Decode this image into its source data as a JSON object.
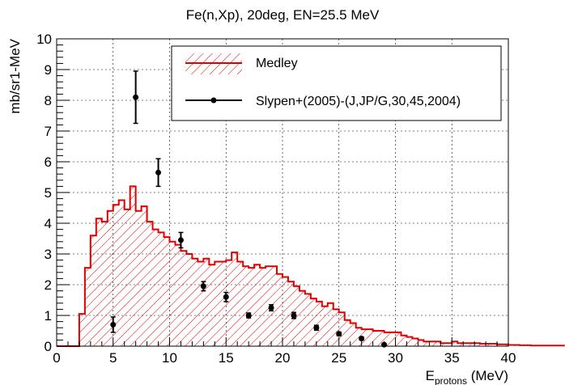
{
  "chart_data": {
    "type": "histogram-with-points",
    "title": "Fe(n,Xp), 20deg, EN=25.5 MeV",
    "xlabel": {
      "main": "E",
      "sub": "protons",
      "suffix": " (MeV)"
    },
    "ylabel": "mb/sr1-MeV",
    "xlim": [
      0,
      40
    ],
    "ylim": [
      0,
      10
    ],
    "x_ticks": [
      "0",
      "5",
      "10",
      "15",
      "20",
      "25",
      "30",
      "35",
      "40"
    ],
    "y_ticks": [
      "0",
      "1",
      "2",
      "3",
      "4",
      "5",
      "6",
      "7",
      "8",
      "9",
      "10"
    ],
    "grid": true,
    "legend_position": "top-right",
    "colors": {
      "histogram": "#e00000",
      "hatch": "#e00000",
      "points": "#000000"
    },
    "histogram": {
      "name": "Medley",
      "bin_width": 0.5,
      "bin_start": 0,
      "values": [
        0,
        0,
        0,
        0,
        1.05,
        2.55,
        3.6,
        4.15,
        4.05,
        4.4,
        4.6,
        4.75,
        4.45,
        5.2,
        4.4,
        4.55,
        4.05,
        3.8,
        3.7,
        3.55,
        3.4,
        3.3,
        3.1,
        3.0,
        2.85,
        2.75,
        2.85,
        2.65,
        2.75,
        2.75,
        2.8,
        3.05,
        2.75,
        2.6,
        2.55,
        2.65,
        2.55,
        2.6,
        2.6,
        2.35,
        2.25,
        2.1,
        1.95,
        1.8,
        1.7,
        1.55,
        1.45,
        1.3,
        1.4,
        1.2,
        1.1,
        0.85,
        0.75,
        0.6,
        0.55,
        0.55,
        0.5,
        0.5,
        0.45,
        0.45,
        0.45,
        0.35,
        0.3,
        0.25,
        0.2,
        0.15,
        0.15,
        0.15,
        0.1,
        0.1,
        0.15,
        0.1,
        0.1,
        0.1,
        0.1,
        0.08,
        0.08,
        0.08,
        0.06,
        0.06,
        0.04,
        0.04,
        0.03,
        0.03,
        0.02,
        0.02,
        0.02,
        0.02,
        0.02,
        0.02
      ]
    },
    "points": {
      "name": "Slypen+(2005)-(J,JP/G,30,45,2004)",
      "x": [
        5,
        7,
        9,
        11,
        13,
        15,
        17,
        19,
        21,
        23,
        25,
        27,
        29
      ],
      "y": [
        0.7,
        8.1,
        5.65,
        3.45,
        1.95,
        1.6,
        1.0,
        1.25,
        1.0,
        0.6,
        0.4,
        0.25,
        0.05
      ],
      "err": [
        0.25,
        0.85,
        0.45,
        0.25,
        0.15,
        0.15,
        0.08,
        0.1,
        0.1,
        0.08,
        0.06,
        0.05,
        0.03
      ]
    }
  }
}
